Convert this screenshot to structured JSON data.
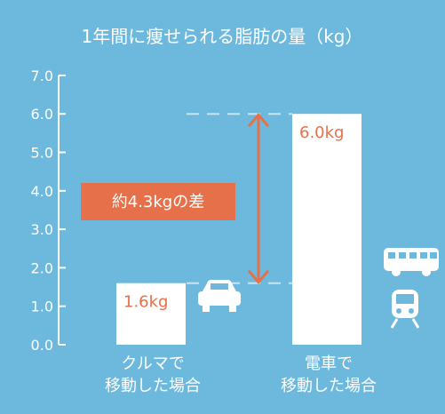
{
  "colors": {
    "background": "#6db9de",
    "bar": "#ffffff",
    "value_label": "#e5704a",
    "accent": "#e5704a",
    "text": "#ffffff",
    "guide": "#c8e4f2"
  },
  "icons": {
    "car": "car-icon",
    "bus": "bus-icon",
    "train": "train-icon"
  },
  "annotation": {
    "text": "約4.3kgの差",
    "from": 1.6,
    "to": 6.0
  },
  "chart_data": {
    "type": "bar",
    "title": "1年間に痩せられる脂肪の量（kg）",
    "xlabel": "",
    "ylabel": "",
    "ylim": [
      0,
      7
    ],
    "yticks": [
      "0.0",
      "1.0",
      "2.0",
      "3.0",
      "4.0",
      "5.0",
      "6.0",
      "7.0"
    ],
    "grid": false,
    "categories": [
      [
        "クルマで",
        "移動した場合"
      ],
      [
        "電車で",
        "移動した場合"
      ]
    ],
    "values": [
      1.6,
      6.0
    ],
    "value_labels": [
      "1.6kg",
      "6.0kg"
    ]
  }
}
